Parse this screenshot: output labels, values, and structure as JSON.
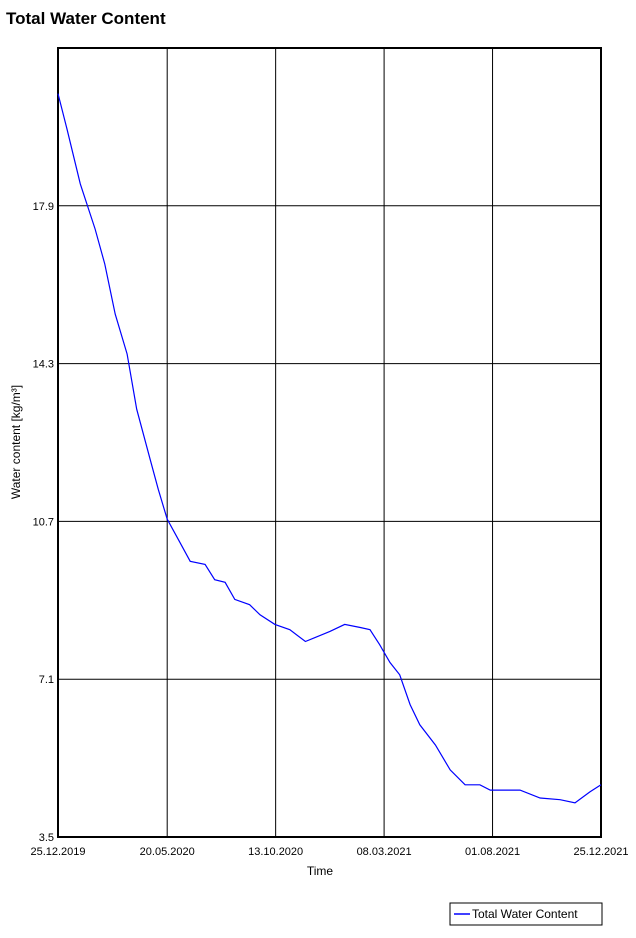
{
  "chart_data": {
    "type": "line",
    "title": "Total Water Content",
    "xlabel": "Time",
    "ylabel": "Water content [kg/m³]",
    "x": [
      "25.12.2019",
      "06.01.2020",
      "24.01.2020",
      "13.02.2020",
      "26.02.2020",
      "11.03.2020",
      "27.03.2020",
      "09.04.2020",
      "27.04.2020",
      "08.05.2020",
      "20.05.2020",
      "04.06.2020",
      "20.06.2020",
      "10.07.2020",
      "23.07.2020",
      "06.08.2020",
      "19.08.2020",
      "08.09.2020",
      "22.09.2020",
      "12.10.2020",
      "01.11.2020",
      "22.11.2020",
      "05.12.2020",
      "25.12.2020",
      "14.01.2021",
      "04.02.2021",
      "17.02.2021",
      "02.03.2021",
      "16.03.2021",
      "29.03.2021",
      "12.04.2021",
      "25.04.2021",
      "16.05.2021",
      "05.06.2021",
      "25.06.2021",
      "15.07.2021",
      "29.07.2021",
      "18.08.2021",
      "07.09.2021",
      "04.10.2021",
      "31.10.2021",
      "20.11.2021",
      "10.12.2021",
      "25.12.2021"
    ],
    "series": [
      {
        "name": "Total Water Content",
        "color": "#0000ff",
        "values": [
          20.46,
          19.66,
          18.4,
          17.37,
          16.57,
          15.43,
          14.52,
          13.26,
          12.12,
          11.43,
          10.75,
          10.29,
          9.79,
          9.72,
          9.37,
          9.31,
          8.92,
          8.8,
          8.57,
          8.35,
          8.23,
          7.96,
          8.05,
          8.19,
          8.35,
          8.28,
          8.23,
          7.89,
          7.48,
          7.2,
          6.52,
          6.06,
          5.6,
          5.03,
          4.69,
          4.69,
          4.57,
          4.57,
          4.57,
          4.39,
          4.35,
          4.28,
          4.53,
          4.69
        ]
      }
    ],
    "xlim": [
      "25.12.2019",
      "25.12.2021"
    ],
    "xticks": [
      "25.12.2019",
      "20.05.2020",
      "13.10.2020",
      "08.03.2021",
      "01.08.2021",
      "25.12.2021"
    ],
    "ylim": [
      3.5,
      21.5
    ],
    "yticks": [
      3.5,
      7.1,
      10.7,
      14.3,
      17.9
    ],
    "grid": true,
    "legend": "bottom-right"
  }
}
